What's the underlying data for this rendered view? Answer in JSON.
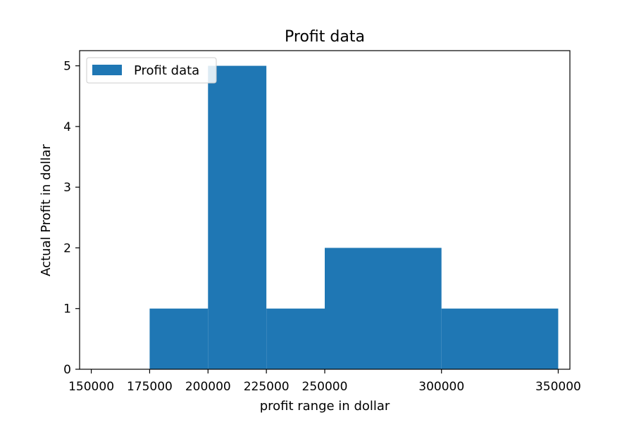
{
  "chart_data": {
    "type": "bar",
    "title": "Profit data",
    "xlabel": "profit range in dollar",
    "ylabel": "Actual Profit in dollar",
    "bins": [
      {
        "start": 175000,
        "end": 200000,
        "value": 1
      },
      {
        "start": 200000,
        "end": 225000,
        "value": 5
      },
      {
        "start": 225000,
        "end": 250000,
        "value": 1
      },
      {
        "start": 250000,
        "end": 300000,
        "value": 2
      },
      {
        "start": 300000,
        "end": 350000,
        "value": 1
      }
    ],
    "xlim": [
      145000,
      355000
    ],
    "ylim": [
      0,
      5.25
    ],
    "xticks": [
      150000,
      175000,
      200000,
      225000,
      250000,
      300000,
      350000
    ],
    "xtick_labels": [
      "150000",
      "175000",
      "200000",
      "225000",
      "250000",
      "300000",
      "350000"
    ],
    "yticks": [
      0,
      1,
      2,
      3,
      4,
      5
    ],
    "ytick_labels": [
      "0",
      "1",
      "2",
      "3",
      "4",
      "5"
    ],
    "grid": false,
    "legend": {
      "position": "top-left",
      "entries": [
        "Profit data"
      ]
    },
    "colors": {
      "bar": "#1f77b4",
      "axis": "#000000"
    }
  }
}
